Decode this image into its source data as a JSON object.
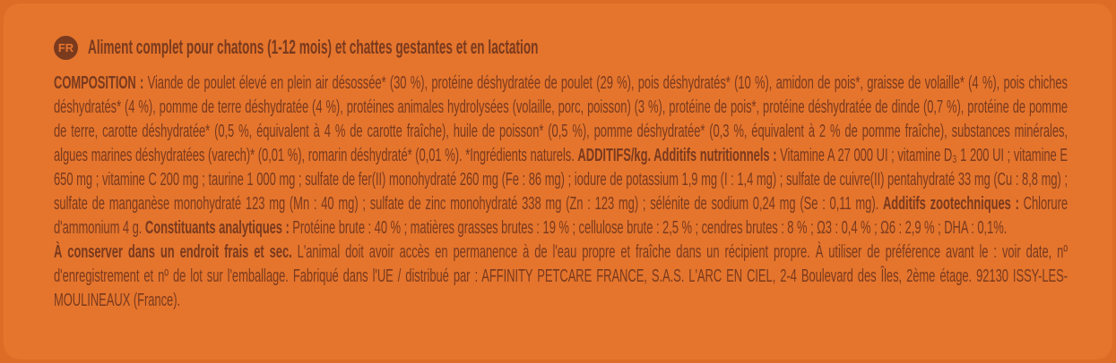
{
  "colors": {
    "outer": "#DC6C26",
    "panel": "#E5752D",
    "ink": "#7A3A1E"
  },
  "label": {
    "language_badge": "FR",
    "title": "Aliment complet pour chatons (1-12 mois) et chattes gestantes et en lactation",
    "composition": {
      "segments": [
        {
          "bold": true,
          "text": "COMPOSITION : "
        },
        {
          "bold": false,
          "text": "Viande de poulet élevé en plein air désossée* (30 %), protéine déshydratée de poulet (29 %), pois déshydratés* (10 %), amidon de pois*, graisse de volaille* (4 %), pois chiches déshydratés* (4 %), pomme de terre déshydratée (4 %), protéines animales hydrolysées (volaille, porc, poisson) (3 %), protéine de pois*, protéine déshydratée de dinde (0,7 %), protéine de pomme de terre, carotte déshydratée* (0,5 %, équivalent à 4 % de carotte fraîche), huile de poisson* (0,5 %), pomme déshydratée* (0,3 %, équivalent à 2 % de pomme fraîche), substances minérales, algues marines déshydratées (varech)* (0,01 %), romarin déshydraté* (0,01 %). *Ingrédients naturels. "
        },
        {
          "bold": true,
          "text": "ADDITIFS/kg. Additifs nutritionnels : "
        },
        {
          "bold": false,
          "text": "Vitamine A 27 000 UI ; vitamine D₃ 1 200 UI ; vitamine E 650 mg ; vitamine C 200 mg ; taurine 1 000 mg ; sulfate de fer(II) monohydraté 260 mg (Fe : 86 mg) ; iodure de potassium 1,9 mg (I : 1,4 mg) ; sulfate de cuivre(II) pentahydraté 33 mg (Cu : 8,8 mg) ; sulfate de manganèse monohydraté 123 mg (Mn : 40 mg) ; sulfate de zinc monohydraté 338 mg (Zn : 123 mg) ; sélénite de sodium 0,24 mg (Se : 0,11 mg). "
        },
        {
          "bold": true,
          "text": "Additifs zootechniques : "
        },
        {
          "bold": false,
          "text": "Chlorure d'ammonium 4 g. "
        },
        {
          "bold": true,
          "text": "Constituants analytiques : "
        },
        {
          "bold": false,
          "text": "Protéine brute : 40 % ; matières grasses brutes : 19 % ; cellulose brute : 2,5 % ; cendres brutes : 8 % ; Ω3 : 0,4 % ; Ω6 : 2,9 % ; DHA : 0,1%."
        }
      ]
    },
    "storage": {
      "segments": [
        {
          "bold": true,
          "text": "À conserver dans un endroit frais et sec. "
        },
        {
          "bold": false,
          "text": "L'animal doit avoir accès en permanence à de l'eau propre et fraîche dans un récipient propre. À utiliser de préférence avant le : voir date, nº d'enregistrement et nº de lot sur l'emballage. Fabriqué dans l'UE / distribué par : AFFINITY PETCARE FRANCE, S.A.S. L'ARC EN CIEL, 2-4 Boulevard des Îles, 2ème étage. 92130 ISSY-LES-MOULINEAUX (France)."
        }
      ]
    }
  }
}
